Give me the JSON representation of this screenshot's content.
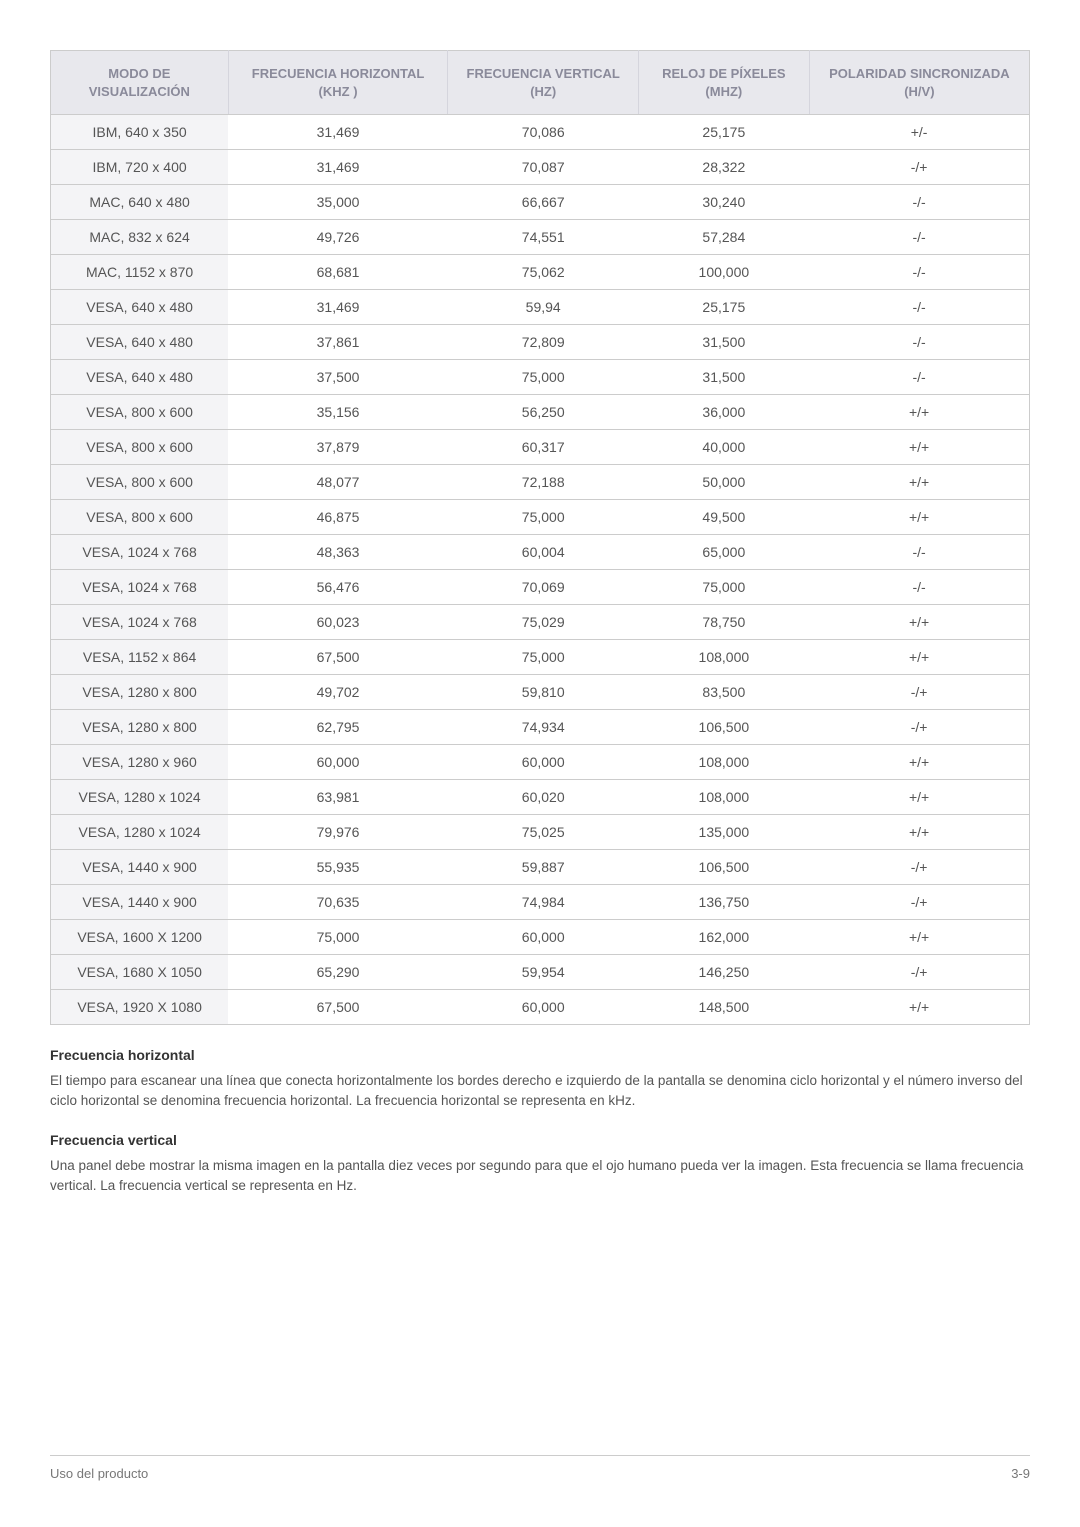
{
  "table": {
    "columns": [
      "MODO DE VISUALIZACIÓN",
      "FRECUENCIA HORIZONTAL (KHZ )",
      "FRECUENCIA VERTICAL (HZ)",
      "RELOJ DE PÍXELES (MHZ)",
      "POLARIDAD SINCRONIZADA (H/V)"
    ],
    "header_bg": "#e8e8ed",
    "header_color": "#8a8a9a",
    "firstcol_bg": "#f4f4f6",
    "border_color": "#cccccc",
    "rows": [
      [
        "IBM, 640 x 350",
        "31,469",
        "70,086",
        "25,175",
        "+/-"
      ],
      [
        "IBM, 720 x 400",
        "31,469",
        "70,087",
        "28,322",
        "-/+"
      ],
      [
        "MAC, 640 x 480",
        "35,000",
        "66,667",
        "30,240",
        "-/-"
      ],
      [
        "MAC, 832 x 624",
        "49,726",
        "74,551",
        "57,284",
        "-/-"
      ],
      [
        "MAC, 1152 x 870",
        "68,681",
        "75,062",
        "100,000",
        "-/-"
      ],
      [
        "VESA, 640 x 480",
        "31,469",
        "59,94",
        "25,175",
        "-/-"
      ],
      [
        "VESA, 640 x 480",
        "37,861",
        "72,809",
        "31,500",
        "-/-"
      ],
      [
        "VESA, 640 x 480",
        "37,500",
        "75,000",
        "31,500",
        "-/-"
      ],
      [
        "VESA, 800 x 600",
        "35,156",
        "56,250",
        "36,000",
        "+/+"
      ],
      [
        "VESA, 800 x 600",
        "37,879",
        "60,317",
        "40,000",
        "+/+"
      ],
      [
        "VESA, 800 x 600",
        "48,077",
        "72,188",
        "50,000",
        "+/+"
      ],
      [
        "VESA, 800 x 600",
        "46,875",
        "75,000",
        "49,500",
        "+/+"
      ],
      [
        "VESA, 1024 x 768",
        "48,363",
        "60,004",
        "65,000",
        "-/-"
      ],
      [
        "VESA, 1024 x 768",
        "56,476",
        "70,069",
        "75,000",
        "-/-"
      ],
      [
        "VESA, 1024 x 768",
        "60,023",
        "75,029",
        "78,750",
        "+/+"
      ],
      [
        "VESA, 1152 x 864",
        "67,500",
        "75,000",
        "108,000",
        "+/+"
      ],
      [
        "VESA, 1280 x 800",
        "49,702",
        "59,810",
        "83,500",
        "-/+"
      ],
      [
        "VESA, 1280 x 800",
        "62,795",
        "74,934",
        "106,500",
        "-/+"
      ],
      [
        "VESA, 1280 x 960",
        "60,000",
        "60,000",
        "108,000",
        "+/+"
      ],
      [
        "VESA, 1280 x 1024",
        "63,981",
        "60,020",
        "108,000",
        "+/+"
      ],
      [
        "VESA, 1280 x 1024",
        "79,976",
        "75,025",
        "135,000",
        "+/+"
      ],
      [
        "VESA, 1440 x 900",
        "55,935",
        "59,887",
        "106,500",
        "-/+"
      ],
      [
        "VESA, 1440 x 900",
        "70,635",
        "74,984",
        "136,750",
        "-/+"
      ],
      [
        "VESA, 1600 X 1200",
        "75,000",
        "60,000",
        "162,000",
        "+/+"
      ],
      [
        "VESA, 1680 X 1050",
        "65,290",
        "59,954",
        "146,250",
        "-/+"
      ],
      [
        "VESA, 1920 X 1080",
        "67,500",
        "60,000",
        "148,500",
        "+/+"
      ]
    ]
  },
  "sections": [
    {
      "title": "Frecuencia horizontal",
      "body": "El tiempo para escanear una línea que conecta horizontalmente los bordes derecho e izquierdo de la pantalla se denomina ciclo horizontal y el número inverso del ciclo horizontal se denomina frecuencia horizontal. La frecuencia horizontal se representa en kHz."
    },
    {
      "title": "Frecuencia vertical",
      "body": "Una panel debe mostrar la misma imagen en la pantalla diez veces por segundo para que el ojo humano pueda ver la imagen. Esta frecuencia se llama frecuencia vertical. La frecuencia vertical se representa en Hz."
    }
  ],
  "footer": {
    "left": "Uso del producto",
    "right": "3-9"
  }
}
